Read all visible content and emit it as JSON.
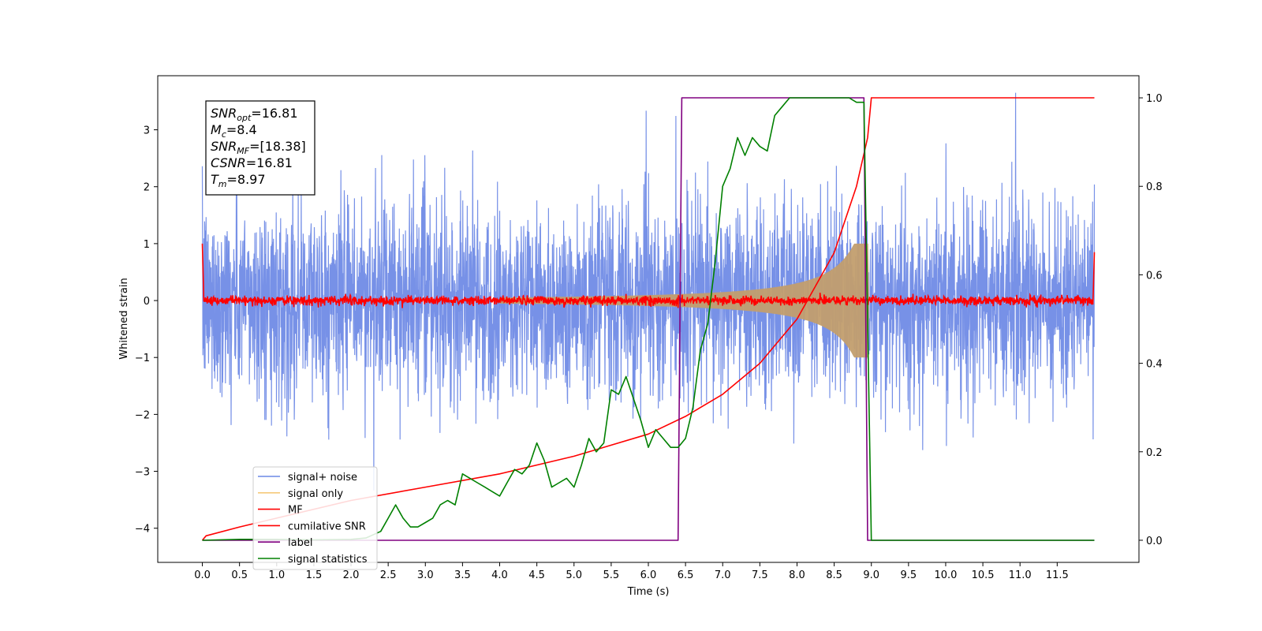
{
  "chart_data": {
    "type": "line",
    "xlabel": "Time (s)",
    "ylabel": "Whitened strain",
    "xlim": [
      -0.6,
      12.6
    ],
    "ylim_left": [
      -4.6,
      3.95
    ],
    "ylim_right": [
      -0.05,
      1.05
    ],
    "x_ticks": [
      0.0,
      0.5,
      1.0,
      1.5,
      2.0,
      2.5,
      3.0,
      3.5,
      4.0,
      4.5,
      5.0,
      5.5,
      6.0,
      6.5,
      7.0,
      7.5,
      8.0,
      8.5,
      9.0,
      9.5,
      10.0,
      10.5,
      11.0,
      11.5
    ],
    "x_tick_labels": [
      "0.0",
      "0.5",
      "1.0",
      "1.5",
      "2.0",
      "2.5",
      "3.0",
      "3.5",
      "4.0",
      "4.5",
      "5.0",
      "5.5",
      "6.0",
      "6.5",
      "7.0",
      "7.5",
      "8.0",
      "8.5",
      "9.0",
      "9.5",
      "10.0",
      "10.5",
      "11.0",
      "11.5"
    ],
    "y_left_ticks": [
      -4,
      -3,
      -2,
      -1,
      0,
      1,
      2,
      3
    ],
    "y_left_tick_labels": [
      "−4",
      "−3",
      "−2",
      "−1",
      "0",
      "1",
      "2",
      "3"
    ],
    "y_right_ticks": [
      0.0,
      0.2,
      0.4,
      0.6,
      0.8,
      1.0
    ],
    "y_right_tick_labels": [
      "0.0",
      "0.2",
      "0.4",
      "0.6",
      "0.8",
      "1.0"
    ],
    "grid": false,
    "legend_placement": "lower-left",
    "annotation": [
      {
        "main": "SNR",
        "sub": "opt",
        "rest": "=16.81"
      },
      {
        "main": "M",
        "sub": "c",
        "rest": "=8.4"
      },
      {
        "main": "SNR",
        "sub": "MF",
        "rest": "=[18.38]"
      },
      {
        "main": "CSNR",
        "sub": "",
        "rest": "=16.81"
      },
      {
        "main": "T",
        "sub": "m",
        "rest": "=8.97"
      }
    ],
    "series": [
      {
        "name": "signal+ noise",
        "color": "#6b88e5",
        "axis": "left",
        "noise_sd": 0.85,
        "x_range": [
          0.0,
          12.0
        ]
      },
      {
        "name": "signal only",
        "color": "#f5c97a",
        "axis": "left",
        "chirp_start": 5.5,
        "merger_time": 8.97,
        "peak_amplitude": 1.0,
        "x_range": [
          0.0,
          12.0
        ]
      },
      {
        "name": "MF",
        "color": "#ff0000",
        "axis": "left",
        "level": 0.0,
        "noise_sd": 0.04,
        "x_range": [
          0.0,
          12.0
        ]
      },
      {
        "name": "cumilative SNR",
        "color": "#ff0000",
        "axis": "right",
        "x": [
          0.0,
          0.05,
          0.5,
          1.0,
          2.0,
          3.0,
          4.0,
          5.0,
          6.0,
          6.5,
          7.0,
          7.5,
          8.0,
          8.5,
          8.8,
          8.95,
          9.0,
          9.5,
          12.0
        ],
        "values": [
          0.0,
          0.01,
          0.03,
          0.05,
          0.09,
          0.12,
          0.15,
          0.19,
          0.24,
          0.28,
          0.33,
          0.4,
          0.5,
          0.65,
          0.8,
          0.91,
          1.0,
          1.0,
          1.0
        ]
      },
      {
        "name": "label",
        "color": "#800080",
        "axis": "right",
        "x": [
          0.0,
          6.4,
          6.45,
          8.9,
          8.95,
          12.0
        ],
        "values": [
          0.0,
          0.0,
          1.0,
          1.0,
          0.0,
          0.0
        ]
      },
      {
        "name": "signal statistics",
        "color": "#008000",
        "axis": "right",
        "x": [
          0.0,
          0.5,
          1.0,
          1.5,
          2.0,
          2.2,
          2.4,
          2.5,
          2.6,
          2.7,
          2.8,
          2.9,
          3.0,
          3.1,
          3.2,
          3.3,
          3.4,
          3.5,
          3.6,
          3.7,
          3.8,
          3.9,
          4.0,
          4.1,
          4.2,
          4.3,
          4.4,
          4.5,
          4.6,
          4.7,
          4.8,
          4.9,
          5.0,
          5.1,
          5.2,
          5.3,
          5.4,
          5.5,
          5.6,
          5.7,
          5.8,
          5.9,
          6.0,
          6.1,
          6.2,
          6.3,
          6.4,
          6.5,
          6.6,
          6.7,
          6.8,
          6.9,
          7.0,
          7.1,
          7.2,
          7.3,
          7.4,
          7.5,
          7.6,
          7.7,
          7.8,
          7.9,
          8.0,
          8.2,
          8.5,
          8.7,
          8.8,
          8.9,
          9.0,
          9.5,
          10.0,
          11.0,
          12.0
        ],
        "values": [
          0.0,
          0.002,
          0.002,
          0.001,
          0.002,
          0.005,
          0.02,
          0.05,
          0.08,
          0.05,
          0.03,
          0.03,
          0.04,
          0.05,
          0.08,
          0.09,
          0.08,
          0.15,
          0.14,
          0.13,
          0.12,
          0.11,
          0.1,
          0.13,
          0.16,
          0.15,
          0.17,
          0.22,
          0.18,
          0.12,
          0.13,
          0.14,
          0.12,
          0.17,
          0.23,
          0.2,
          0.22,
          0.34,
          0.33,
          0.37,
          0.32,
          0.27,
          0.21,
          0.25,
          0.23,
          0.21,
          0.21,
          0.23,
          0.3,
          0.43,
          0.49,
          0.63,
          0.8,
          0.84,
          0.91,
          0.87,
          0.91,
          0.89,
          0.88,
          0.96,
          0.98,
          1.0,
          1.0,
          1.0,
          1.0,
          1.0,
          0.99,
          0.99,
          0.0,
          0.0,
          0.0,
          0.0,
          0.0
        ]
      }
    ]
  }
}
